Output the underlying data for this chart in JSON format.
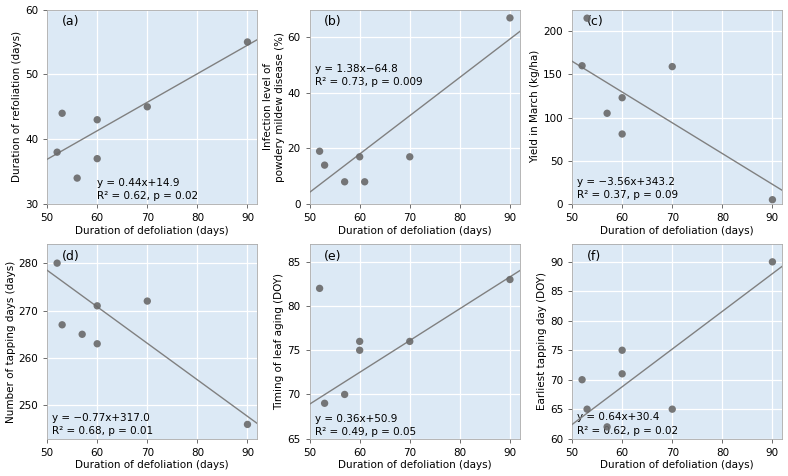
{
  "panels": [
    {
      "label": "(a)",
      "xlabel": "Duration of defoliation (days)",
      "ylabel": "Duration of refoliation (days)",
      "x": [
        52,
        53,
        56,
        60,
        60,
        70,
        90
      ],
      "y": [
        38,
        44,
        34,
        43,
        37,
        45,
        55
      ],
      "equation": "y = 0.44x+14.9",
      "r2p": "R² = 0.62, p = 0.02",
      "slope": 0.44,
      "intercept": 14.9,
      "xlim": [
        50,
        92
      ],
      "ylim": [
        30,
        60
      ],
      "yticks": [
        30,
        40,
        50,
        60
      ],
      "xticks": [
        50,
        60,
        70,
        80,
        90
      ],
      "eq_x": 60,
      "eq_y": 30.5,
      "line_x": [
        50,
        92
      ]
    },
    {
      "label": "(b)",
      "xlabel": "Duration of defoliation (days)",
      "ylabel": "Infection level of\npowdery mildew disease (%)",
      "x": [
        52,
        53,
        57,
        60,
        61,
        70,
        90
      ],
      "y": [
        19,
        14,
        8,
        17,
        8,
        17,
        67
      ],
      "equation": "y = 1.38x−64.8",
      "r2p": "R² = 0.73, p = 0.009",
      "slope": 1.38,
      "intercept": -64.8,
      "xlim": [
        50,
        92
      ],
      "ylim": [
        0,
        70
      ],
      "yticks": [
        0,
        20,
        40,
        60
      ],
      "xticks": [
        50,
        60,
        70,
        80,
        90
      ],
      "eq_x": 51,
      "eq_y": 42,
      "line_x": [
        50,
        92
      ]
    },
    {
      "label": "(c)",
      "xlabel": "Duration of defoliation (days)",
      "ylabel": "Yield in March (kg/ha)",
      "x": [
        52,
        53,
        57,
        60,
        60,
        70,
        90
      ],
      "y": [
        160,
        215,
        105,
        123,
        81,
        159,
        5
      ],
      "equation": "y = −3.56x+343.2",
      "r2p": "R² = 0.37, p = 0.09",
      "slope": -3.56,
      "intercept": 343.2,
      "xlim": [
        50,
        92
      ],
      "ylim": [
        0,
        225
      ],
      "yticks": [
        0,
        50,
        100,
        150,
        200
      ],
      "xticks": [
        50,
        60,
        70,
        80,
        90
      ],
      "eq_x": 51,
      "eq_y": 5,
      "line_x": [
        50,
        92
      ]
    },
    {
      "label": "(d)",
      "xlabel": "Duration of defoliation (days)",
      "ylabel": "Number of tapping days (days)",
      "x": [
        52,
        53,
        57,
        60,
        60,
        70,
        90
      ],
      "y": [
        280,
        267,
        265,
        271,
        263,
        272,
        246
      ],
      "equation": "y = −0.77x+317.0",
      "r2p": "R² = 0.68, p = 0.01",
      "slope": -0.77,
      "intercept": 317.0,
      "xlim": [
        50,
        92
      ],
      "ylim": [
        243,
        284
      ],
      "yticks": [
        250,
        260,
        270,
        280
      ],
      "xticks": [
        50,
        60,
        70,
        80,
        90
      ],
      "eq_x": 51,
      "eq_y": 243.5,
      "line_x": [
        50,
        92
      ]
    },
    {
      "label": "(e)",
      "xlabel": "Duration of defoliation (days)",
      "ylabel": "Timing of leaf aging (DOY)",
      "x": [
        52,
        53,
        57,
        60,
        60,
        70,
        90
      ],
      "y": [
        82,
        69,
        70,
        75,
        76,
        76,
        83
      ],
      "equation": "y = 0.36x+50.9",
      "r2p": "R² = 0.49, p = 0.05",
      "slope": 0.36,
      "intercept": 50.9,
      "xlim": [
        50,
        92
      ],
      "ylim": [
        65,
        87
      ],
      "yticks": [
        65,
        70,
        75,
        80,
        85
      ],
      "xticks": [
        50,
        60,
        70,
        80,
        90
      ],
      "eq_x": 51,
      "eq_y": 65.2,
      "line_x": [
        50,
        92
      ]
    },
    {
      "label": "(f)",
      "xlabel": "Duration of defoliation (days)",
      "ylabel": "Earliest tapping day (DOY)",
      "x": [
        52,
        53,
        57,
        60,
        60,
        70,
        90
      ],
      "y": [
        70,
        65,
        62,
        71,
        75,
        65,
        90
      ],
      "equation": "y = 0.64x+30.4",
      "r2p": "R² = 0.62, p = 0.02",
      "slope": 0.64,
      "intercept": 30.4,
      "xlim": [
        50,
        92
      ],
      "ylim": [
        60,
        93
      ],
      "yticks": [
        60,
        65,
        70,
        75,
        80,
        85,
        90
      ],
      "xticks": [
        50,
        60,
        70,
        80,
        90
      ],
      "eq_x": 51,
      "eq_y": 60.5,
      "line_x": [
        50,
        92
      ]
    }
  ],
  "dot_color": "#696969",
  "line_color": "#808080",
  "bg_color": "#dce9f5",
  "grid_color": "#ffffff",
  "tick_fontsize": 7.5,
  "label_fontsize": 7.5,
  "eq_fontsize": 7.5,
  "panel_label_fontsize": 9
}
